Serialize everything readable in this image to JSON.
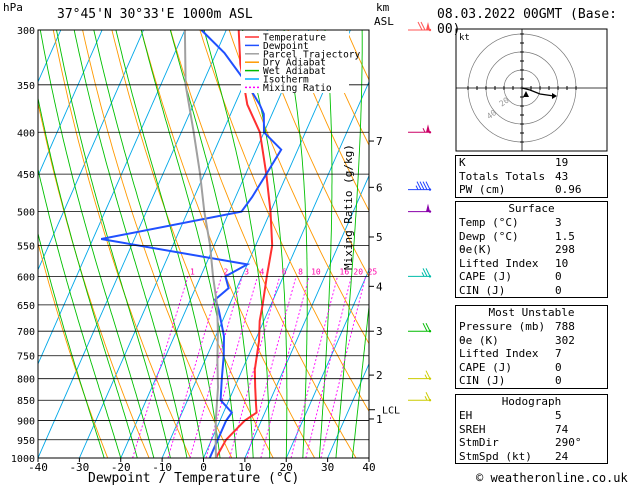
{
  "header": {
    "hpa_label": "hPa",
    "location": "37°45'N  30°33'E  1000m  ASL",
    "km_label": "km",
    "asl_label": "ASL",
    "datetime": "08.03.2022  00GMT  (Base: 00)"
  },
  "chart_data": {
    "type": "line",
    "title": "37°45'N 30°33'E 1000m ASL",
    "xlabel": "Dewpoint / Temperature (°C)",
    "ylabel": "hPa",
    "y2label": "Mixing Ratio (g/kg)",
    "xlim": [
      -40,
      40
    ],
    "ylim": [
      1000,
      300
    ],
    "x_ticks": [
      -40,
      -30,
      -20,
      -10,
      0,
      10,
      20,
      30,
      40
    ],
    "pressure_levels": [
      300,
      350,
      400,
      450,
      500,
      550,
      600,
      650,
      700,
      750,
      800,
      850,
      900,
      950,
      1000
    ],
    "km_ticks": [
      {
        "km": "7",
        "p": 410
      },
      {
        "km": "6",
        "p": 467
      },
      {
        "km": "5",
        "p": 537
      },
      {
        "km": "4",
        "p": 617
      },
      {
        "km": "3",
        "p": 700
      },
      {
        "km": "2",
        "p": 792
      },
      {
        "km": "1",
        "p": 896
      }
    ],
    "lcl_label": "LCL",
    "lcl_p": 873,
    "mixing_ratio_labels": [
      "1",
      "2",
      "3",
      "4",
      "6",
      "8",
      "10",
      "16",
      "20",
      "25"
    ],
    "legend": [
      "Temperature",
      "Dewpoint",
      "Parcel Trajectory",
      "Dry Adiabat",
      "Wet Adiabat",
      "Isotherm",
      "Mixing Ratio"
    ],
    "legend_colors": [
      "#ff3030",
      "#2050ff",
      "#a0a0a0",
      "#ff9900",
      "#00bb00",
      "#00aaff",
      "#ff00ff"
    ],
    "series": [
      {
        "name": "Temperature",
        "color": "#ff3030",
        "points": [
          [
            3,
            1000
          ],
          [
            3.5,
            950
          ],
          [
            6,
            900
          ],
          [
            8,
            880
          ],
          [
            7,
            860
          ],
          [
            5,
            820
          ],
          [
            3,
            780
          ],
          [
            1,
            720
          ],
          [
            -1,
            680
          ],
          [
            -2,
            650
          ],
          [
            -4,
            600
          ],
          [
            -6,
            550
          ],
          [
            -10,
            500
          ],
          [
            -15,
            450
          ],
          [
            -21,
            400
          ],
          [
            -27,
            370
          ],
          [
            -33,
            330
          ],
          [
            -37,
            300
          ]
        ]
      },
      {
        "name": "Dewpoint",
        "color": "#2050ff",
        "points": [
          [
            1.5,
            1000
          ],
          [
            1.5,
            960
          ],
          [
            1.5,
            900
          ],
          [
            2,
            880
          ],
          [
            -2,
            850
          ],
          [
            -4,
            800
          ],
          [
            -6,
            750
          ],
          [
            -8,
            710
          ],
          [
            -12,
            660
          ],
          [
            -14,
            640
          ],
          [
            -12,
            620
          ],
          [
            -14,
            600
          ],
          [
            -10,
            580
          ],
          [
            -48,
            540
          ],
          [
            -17,
            500
          ],
          [
            -16,
            480
          ],
          [
            -15,
            450
          ],
          [
            -14,
            420
          ],
          [
            -20,
            400
          ],
          [
            -22,
            380
          ],
          [
            -24,
            370
          ],
          [
            -29,
            350
          ],
          [
            -38,
            320
          ],
          [
            -46,
            300
          ]
        ]
      },
      {
        "name": "Parcel Trajectory",
        "color": "#a0a0a0",
        "points": [
          [
            3,
            1000
          ],
          [
            1,
            950
          ],
          [
            -1,
            900
          ],
          [
            -2,
            873
          ],
          [
            -4,
            820
          ],
          [
            -7,
            760
          ],
          [
            -10,
            700
          ],
          [
            -13,
            650
          ],
          [
            -17,
            600
          ],
          [
            -21,
            550
          ],
          [
            -26,
            500
          ],
          [
            -31,
            450
          ],
          [
            -37,
            400
          ],
          [
            -44,
            350
          ],
          [
            -50,
            300
          ]
        ]
      }
    ],
    "hodograph": {
      "unit": "kt",
      "ring_labels": [
        "20",
        "40"
      ],
      "points": [
        [
          0,
          0
        ],
        [
          4,
          -1
        ],
        [
          9,
          -3
        ],
        [
          16,
          -4
        ]
      ]
    },
    "wind_barbs": [
      {
        "p": 300,
        "color": "#ff5555",
        "speed": 70,
        "dir": 285
      },
      {
        "p": 400,
        "color": "#cc0066",
        "speed": 55,
        "dir": 270
      },
      {
        "p": 470,
        "color": "#2244ff",
        "speed": 45,
        "dir": 270
      },
      {
        "p": 500,
        "color": "#8800aa",
        "speed": 50,
        "dir": 270
      },
      {
        "p": 600,
        "color": "#00bbaa",
        "speed": 25,
        "dir": 280
      },
      {
        "p": 700,
        "color": "#00bb00",
        "speed": 20,
        "dir": 275
      },
      {
        "p": 800,
        "color": "#cccc00",
        "speed": 15,
        "dir": 260
      },
      {
        "p": 850,
        "color": "#cccc00",
        "speed": 15,
        "dir": 240
      }
    ]
  },
  "indices": {
    "K_label": "K",
    "K": "19",
    "TT_label": "Totals Totals",
    "TT": "43",
    "PW_label": "PW (cm)",
    "PW": "0.96"
  },
  "surface": {
    "title": "Surface",
    "temp_label": "Temp (°C)",
    "temp": "3",
    "dewp_label": "Dewp (°C)",
    "dewp": "1.5",
    "theta_label": "θe(K)",
    "theta": "298",
    "li_label": "Lifted Index",
    "li": "10",
    "cape_label": "CAPE (J)",
    "cape": "0",
    "cin_label": "CIN (J)",
    "cin": "0"
  },
  "most_unstable": {
    "title": "Most Unstable",
    "pres_label": "Pressure (mb)",
    "pres": "788",
    "theta_label": "θe (K)",
    "theta": "302",
    "li_label": "Lifted Index",
    "li": "7",
    "cape_label": "CAPE (J)",
    "cape": "0",
    "cin_label": "CIN (J)",
    "cin": "0"
  },
  "hodograph_table": {
    "title": "Hodograph",
    "eh_label": "EH",
    "eh": "5",
    "sreh_label": "SREH",
    "sreh": "74",
    "stmdir_label": "StmDir",
    "stmdir": "290°",
    "stmspd_label": "StmSpd (kt)",
    "stmspd": "24"
  },
  "footer": {
    "copyright": "© weatheronline.co.uk"
  }
}
